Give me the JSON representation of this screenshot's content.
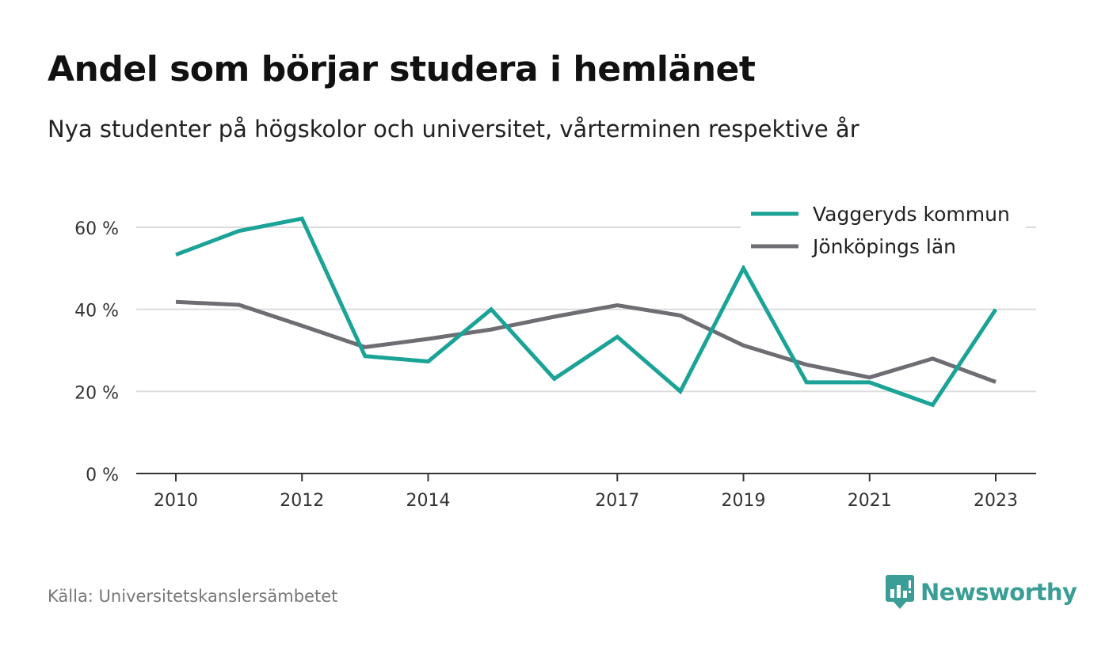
{
  "title": "Andel som börjar studera i hemlänet",
  "subtitle": "Nya studenter på högskolor och universitet, vårterminen respektive år",
  "source": "Källa: Universitetskanslersämbetet",
  "brand": {
    "name": "Newsworthy",
    "icon": "newsworthy-logo-icon",
    "color": "#3a9e96"
  },
  "chart_data": {
    "type": "line",
    "x": [
      2010,
      2011,
      2012,
      2013,
      2014,
      2015,
      2016,
      2017,
      2018,
      2019,
      2020,
      2021,
      2022,
      2023
    ],
    "x_tick_labels": [
      "2010",
      "2012",
      "2014",
      "2017",
      "2019",
      "2021",
      "2023"
    ],
    "y_tick_labels": [
      "0 %",
      "20 %",
      "40 %",
      "60 %"
    ],
    "y_ticks": [
      0,
      20,
      40,
      60
    ],
    "ylim": [
      0,
      70
    ],
    "grid": true,
    "legend_position": "top-right",
    "series": [
      {
        "name": "Vaggeryds kommun",
        "color": "#1aa396",
        "values": [
          53.3,
          59.1,
          62.1,
          28.6,
          27.3,
          40.0,
          23.1,
          33.3,
          20.0,
          50.0,
          22.2,
          22.2,
          16.7,
          40.0
        ]
      },
      {
        "name": "Jönköpings län",
        "color": "#6f6d74",
        "values": [
          41.8,
          41.1,
          36.0,
          30.8,
          32.8,
          35.1,
          38.2,
          41.0,
          38.5,
          31.2,
          26.5,
          23.4,
          28.0,
          22.3
        ]
      }
    ]
  }
}
